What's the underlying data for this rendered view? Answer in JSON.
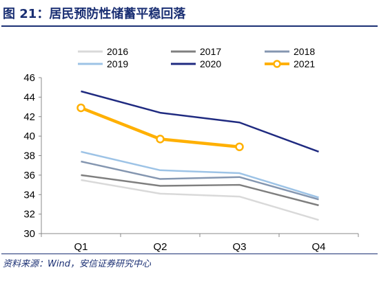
{
  "title": "图 21：居民预防性储蓄平稳回落",
  "source": "资料来源：Wind，安信证券研究中心",
  "chart_data": {
    "type": "line",
    "categories": [
      "Q1",
      "Q2",
      "Q3",
      "Q4"
    ],
    "ylim": [
      30,
      46
    ],
    "yticks": [
      "30",
      "32",
      "34",
      "36",
      "38",
      "40",
      "42",
      "44",
      "46"
    ],
    "grid": false,
    "legend_position": "top",
    "series": [
      {
        "name": "2016",
        "color": "#d9d9d9",
        "marker": false,
        "values": [
          35.5,
          34.1,
          33.8,
          31.4
        ]
      },
      {
        "name": "2017",
        "color": "#7f7f7f",
        "marker": false,
        "values": [
          36.0,
          34.9,
          35.0,
          32.9
        ]
      },
      {
        "name": "2018",
        "color": "#8496b0",
        "marker": false,
        "values": [
          37.4,
          35.6,
          35.8,
          33.5
        ]
      },
      {
        "name": "2019",
        "color": "#9dc3e6",
        "marker": false,
        "values": [
          38.4,
          36.5,
          36.2,
          33.7
        ]
      },
      {
        "name": "2020",
        "color": "#1f2a80",
        "marker": false,
        "values": [
          44.6,
          42.4,
          41.4,
          38.4
        ]
      },
      {
        "name": "2021",
        "color": "#ffb000",
        "marker": true,
        "values": [
          42.9,
          39.7,
          38.9,
          null
        ]
      }
    ]
  }
}
